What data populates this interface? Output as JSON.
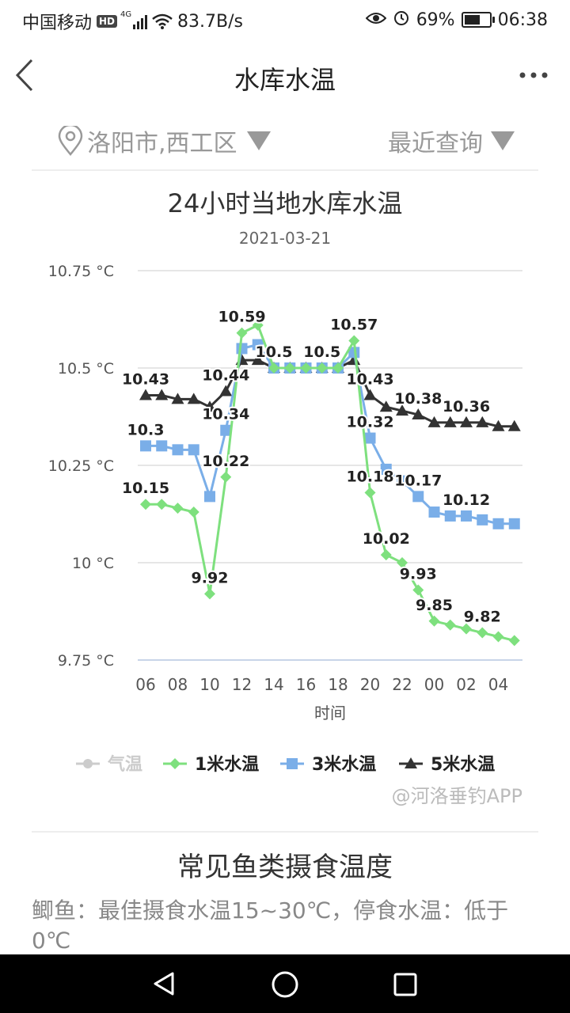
{
  "status": {
    "carrier": "中国移动",
    "hd": "HD",
    "net": "4G",
    "speed": "83.7B/s",
    "battery": "69%",
    "battery_level": 0.69,
    "time": "06:38"
  },
  "header": {
    "title": "水库水温"
  },
  "filters": {
    "location": "洛阳市,西工区",
    "query": "最近查询"
  },
  "chart_data": {
    "type": "line",
    "title": "24小时当地水库水温",
    "subtitle": "2021-03-21",
    "xlabel": "时间",
    "x_ticks": [
      "06",
      "08",
      "10",
      "12",
      "14",
      "16",
      "18",
      "20",
      "22",
      "00",
      "02",
      "04"
    ],
    "x_hours": [
      6,
      7,
      8,
      9,
      10,
      11,
      12,
      13,
      14,
      15,
      16,
      17,
      18,
      19,
      20,
      21,
      22,
      23,
      24,
      25,
      26,
      27,
      28,
      29
    ],
    "y_ticks": [
      "10.75 °C",
      "10.5 °C",
      "10.25 °C",
      "10 °C",
      "9.75 °C"
    ],
    "ylim": [
      9.75,
      10.75
    ],
    "grid": "horizontal",
    "legend_position": "bottom",
    "series": [
      {
        "name": "气温",
        "marker": "circle",
        "color": "#cccccc",
        "values": []
      },
      {
        "name": "1米水温",
        "marker": "diamond",
        "color": "#7ee07e",
        "values": [
          10.15,
          10.15,
          10.14,
          10.13,
          9.92,
          10.22,
          10.59,
          10.61,
          10.5,
          10.5,
          10.5,
          10.5,
          10.5,
          10.57,
          10.18,
          10.02,
          10.0,
          9.93,
          9.85,
          9.84,
          9.83,
          9.82,
          9.81,
          9.8
        ]
      },
      {
        "name": "3米水温",
        "marker": "square",
        "color": "#7aaee8",
        "values": [
          10.3,
          10.3,
          10.29,
          10.29,
          10.17,
          10.34,
          10.55,
          10.56,
          10.5,
          10.5,
          10.5,
          10.5,
          10.5,
          10.54,
          10.32,
          10.24,
          10.21,
          10.17,
          10.13,
          10.12,
          10.12,
          10.11,
          10.1,
          10.1
        ]
      },
      {
        "name": "5米水温",
        "marker": "triangle",
        "color": "#333333",
        "values": [
          10.43,
          10.43,
          10.42,
          10.42,
          10.4,
          10.44,
          10.52,
          10.52,
          10.5,
          10.5,
          10.5,
          10.5,
          10.5,
          10.52,
          10.43,
          10.4,
          10.39,
          10.38,
          10.36,
          10.36,
          10.36,
          10.36,
          10.35,
          10.35
        ]
      }
    ],
    "data_labels": [
      {
        "text": "10.43",
        "x": 6,
        "y": 10.43
      },
      {
        "text": "10.3",
        "x": 6,
        "y": 10.3
      },
      {
        "text": "10.15",
        "x": 6,
        "y": 10.15
      },
      {
        "text": "10.59",
        "x": 12,
        "y": 10.59
      },
      {
        "text": "10.44",
        "x": 11,
        "y": 10.44
      },
      {
        "text": "10.34",
        "x": 11,
        "y": 10.34
      },
      {
        "text": "10.22",
        "x": 11,
        "y": 10.22
      },
      {
        "text": "9.92",
        "x": 10,
        "y": 9.92
      },
      {
        "text": "10.5",
        "x": 14,
        "y": 10.5
      },
      {
        "text": "10.5",
        "x": 17,
        "y": 10.5
      },
      {
        "text": "10.57",
        "x": 19,
        "y": 10.57
      },
      {
        "text": "10.43",
        "x": 20,
        "y": 10.43
      },
      {
        "text": "10.32",
        "x": 20,
        "y": 10.32
      },
      {
        "text": "10.18",
        "x": 20,
        "y": 10.18
      },
      {
        "text": "10.02",
        "x": 21,
        "y": 10.02
      },
      {
        "text": "10.17",
        "x": 23,
        "y": 10.17
      },
      {
        "text": "10.38",
        "x": 23,
        "y": 10.38
      },
      {
        "text": "9.93",
        "x": 23,
        "y": 9.93
      },
      {
        "text": "9.85",
        "x": 24,
        "y": 9.85
      },
      {
        "text": "10.36",
        "x": 26,
        "y": 10.36
      },
      {
        "text": "10.12",
        "x": 26,
        "y": 10.12
      },
      {
        "text": "9.82",
        "x": 27,
        "y": 9.82
      }
    ]
  },
  "legend": {
    "air": "气温",
    "m1": "1米水温",
    "m3": "3米水温",
    "m5": "5米水温"
  },
  "watermark": "@河洛垂钓APP",
  "section": {
    "title": "常见鱼类摄食温度",
    "text": "鲫鱼：最佳摄食水温15~30℃，停食水温：低于0℃"
  },
  "icons": {
    "back": "back-arrow-icon",
    "more": "more-dots-icon",
    "location": "location-pin-icon"
  }
}
